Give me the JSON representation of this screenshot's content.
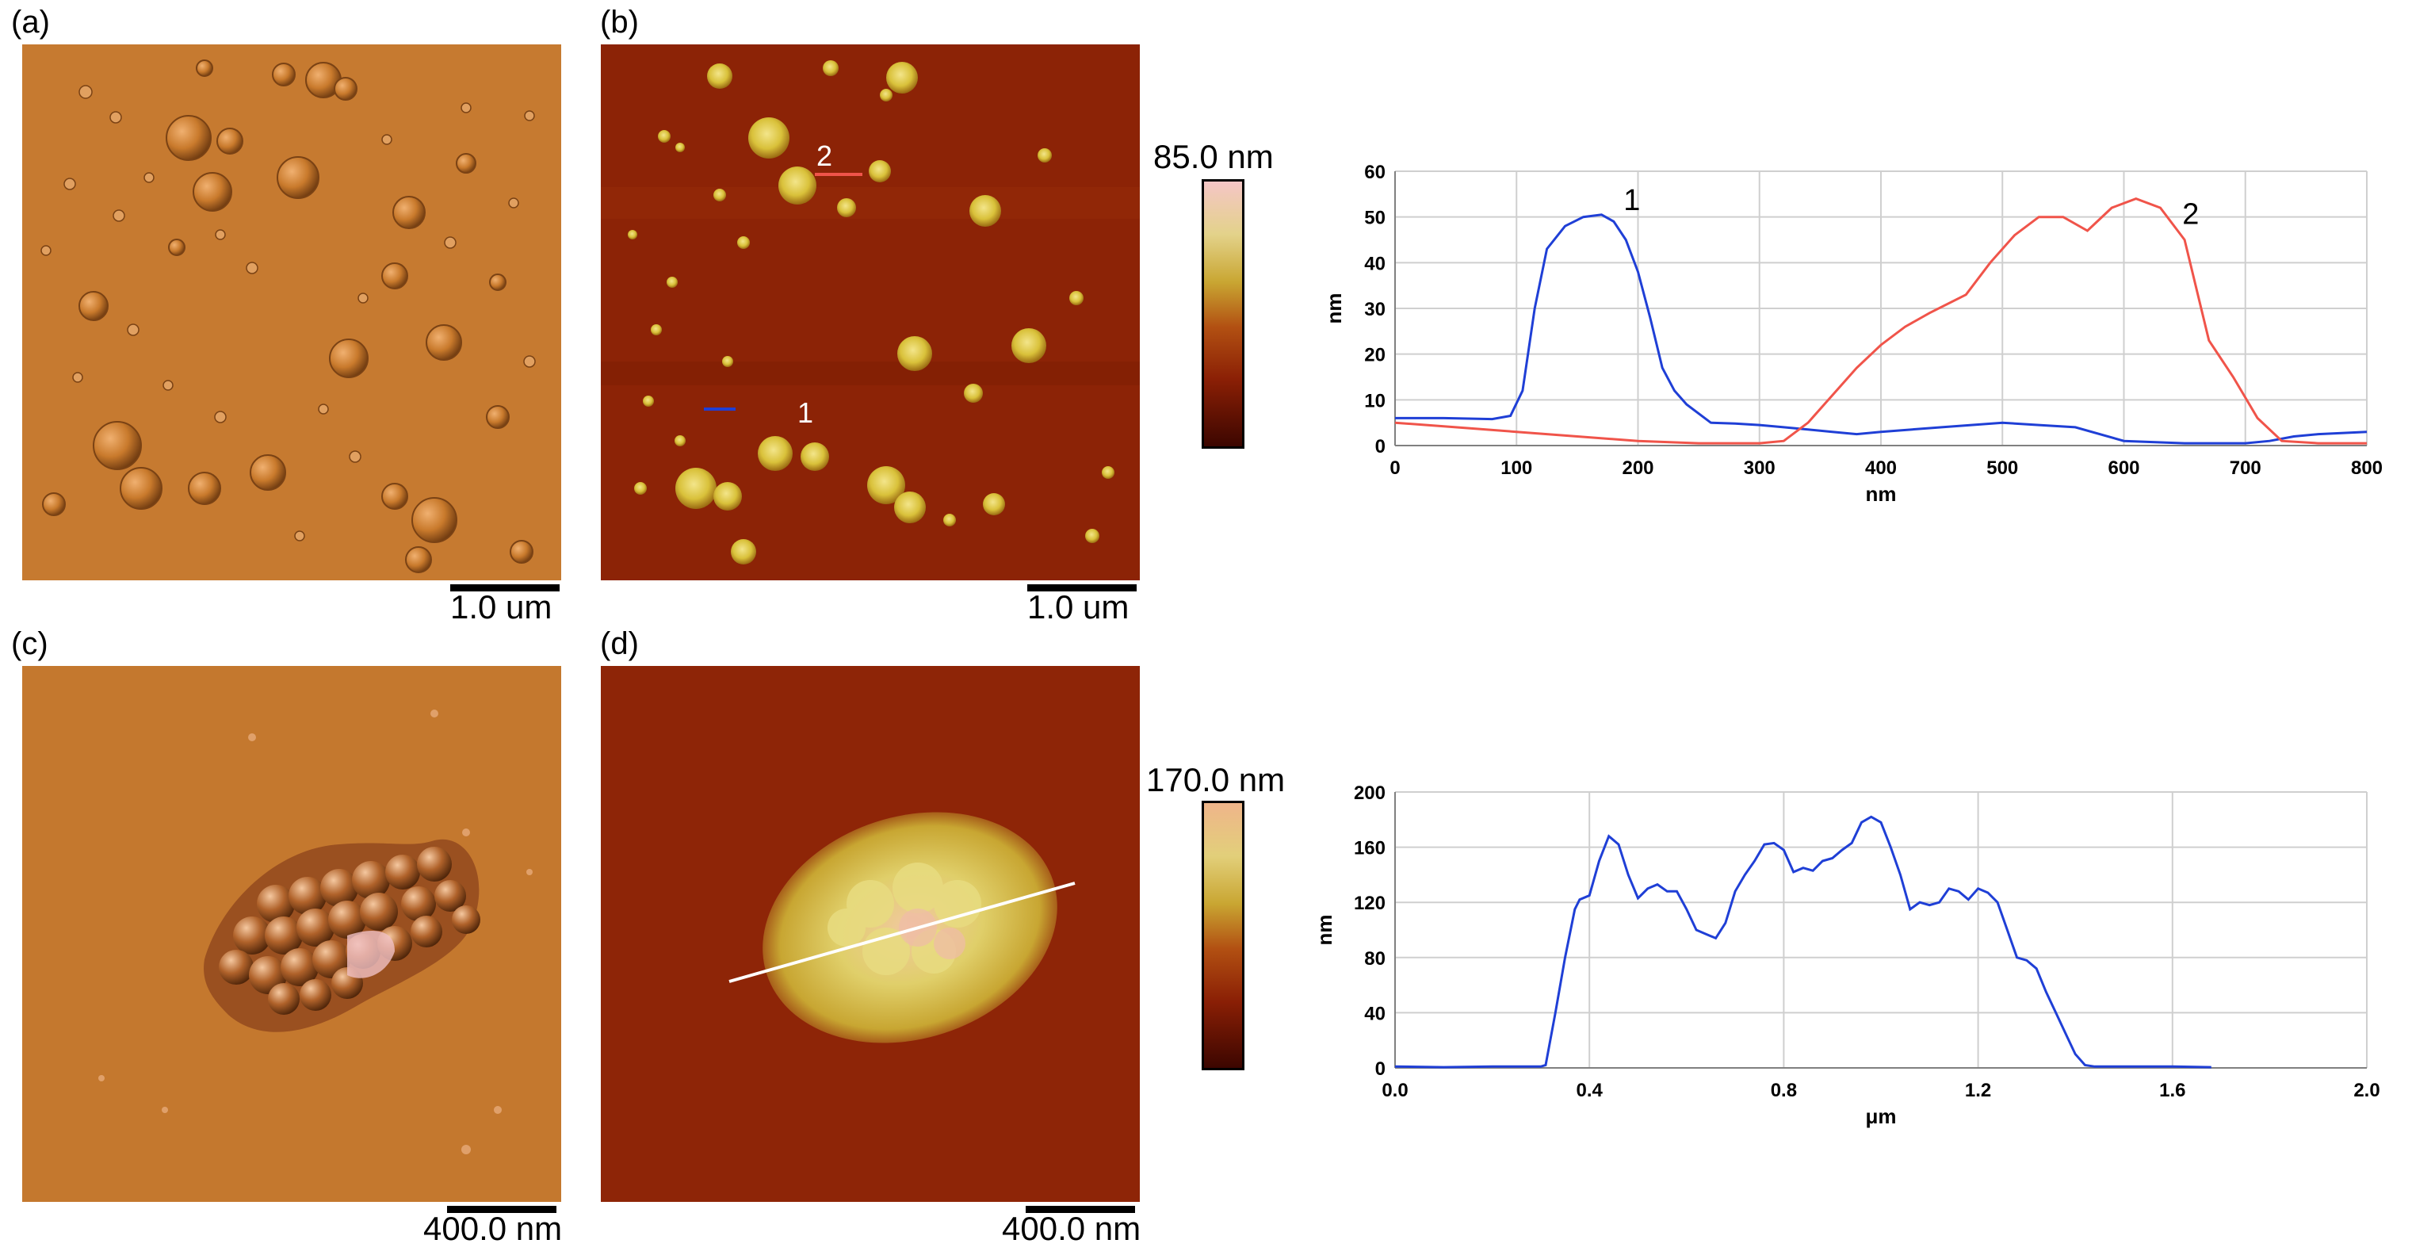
{
  "panels": {
    "a": {
      "label": "(a)",
      "scale": "1.0 um"
    },
    "b": {
      "label": "(b)",
      "scale": "1.0 um",
      "line1": "1",
      "line2": "2",
      "colorbar_max": "85.0 nm"
    },
    "c": {
      "label": "(c)",
      "scale": "400.0 nm"
    },
    "d": {
      "label": "(d)",
      "scale": "400.0 nm",
      "colorbar_max": "170.0 nm"
    }
  },
  "colors": {
    "amplitude": "#c97a2c",
    "height_bg": "#8a1f05",
    "grain": "#d9c13a",
    "series1": "#1f3fd6",
    "series2": "#f0544a"
  },
  "chart_data": [
    {
      "type": "line",
      "xlabel": "nm",
      "ylabel": "nm",
      "xlim": [
        0,
        800
      ],
      "ylim": [
        0,
        60
      ],
      "xticks": [
        0,
        100,
        200,
        300,
        400,
        500,
        600,
        700,
        800
      ],
      "yticks": [
        0,
        10,
        20,
        30,
        40,
        50,
        60
      ],
      "grid": true,
      "series": [
        {
          "name": "1",
          "color": "#1f3fd6",
          "x": [
            0,
            40,
            80,
            95,
            105,
            115,
            125,
            140,
            155,
            170,
            180,
            190,
            200,
            210,
            220,
            230,
            240,
            260,
            280,
            300,
            320,
            340,
            360,
            380,
            400,
            450,
            500,
            530,
            560,
            600,
            650,
            700,
            720,
            740,
            760,
            800
          ],
          "y": [
            6,
            6,
            5.8,
            6.5,
            12,
            30,
            43,
            48,
            50,
            50.5,
            49,
            45,
            38,
            28,
            17,
            12,
            9,
            5,
            4.8,
            4.5,
            4,
            3.5,
            3,
            2.5,
            3,
            4,
            5,
            4.5,
            4,
            1,
            0.5,
            0.5,
            1,
            2,
            2.5,
            3
          ]
        },
        {
          "name": "2",
          "color": "#f0544a",
          "x": [
            0,
            50,
            100,
            150,
            200,
            250,
            300,
            320,
            340,
            360,
            380,
            400,
            420,
            440,
            470,
            490,
            510,
            530,
            550,
            570,
            590,
            610,
            630,
            650,
            670,
            690,
            710,
            730,
            760,
            800
          ],
          "y": [
            5,
            4,
            3,
            2,
            1,
            0.5,
            0.5,
            1,
            5,
            11,
            17,
            22,
            26,
            29,
            33,
            40,
            46,
            50,
            50,
            47,
            52,
            54,
            52,
            45,
            23,
            15,
            6,
            1,
            0.5,
            0.5
          ]
        }
      ]
    },
    {
      "type": "line",
      "xlabel": "μm",
      "ylabel": "nm",
      "xlim": [
        0.0,
        2.0
      ],
      "ylim": [
        0,
        200
      ],
      "xticks": [
        "0.0",
        "0.4",
        "0.8",
        "1.2",
        "1.6",
        "2.0"
      ],
      "yticks": [
        0,
        40,
        80,
        120,
        160,
        200
      ],
      "grid": true,
      "series": [
        {
          "color": "#1f3fd6",
          "x": [
            0.0,
            0.1,
            0.2,
            0.3,
            0.31,
            0.33,
            0.35,
            0.37,
            0.38,
            0.4,
            0.42,
            0.44,
            0.46,
            0.48,
            0.5,
            0.52,
            0.54,
            0.56,
            0.58,
            0.6,
            0.62,
            0.64,
            0.66,
            0.68,
            0.7,
            0.72,
            0.74,
            0.76,
            0.78,
            0.8,
            0.82,
            0.84,
            0.86,
            0.88,
            0.9,
            0.92,
            0.94,
            0.96,
            0.98,
            1.0,
            1.02,
            1.04,
            1.06,
            1.08,
            1.1,
            1.12,
            1.14,
            1.16,
            1.18,
            1.2,
            1.22,
            1.24,
            1.26,
            1.28,
            1.3,
            1.32,
            1.34,
            1.36,
            1.38,
            1.4,
            1.42,
            1.44,
            1.5,
            1.6,
            1.68
          ],
          "y": [
            1,
            0.5,
            1,
            1,
            2,
            40,
            80,
            115,
            122,
            125,
            150,
            168,
            162,
            140,
            123,
            130,
            133,
            128,
            128,
            115,
            100,
            97,
            94,
            105,
            128,
            140,
            150,
            162,
            163,
            158,
            142,
            145,
            143,
            150,
            152,
            158,
            163,
            178,
            182,
            178,
            160,
            140,
            115,
            120,
            118,
            120,
            130,
            128,
            122,
            130,
            127,
            120,
            100,
            80,
            78,
            72,
            55,
            40,
            25,
            10,
            2,
            1,
            1,
            1,
            0.5
          ]
        }
      ]
    }
  ]
}
